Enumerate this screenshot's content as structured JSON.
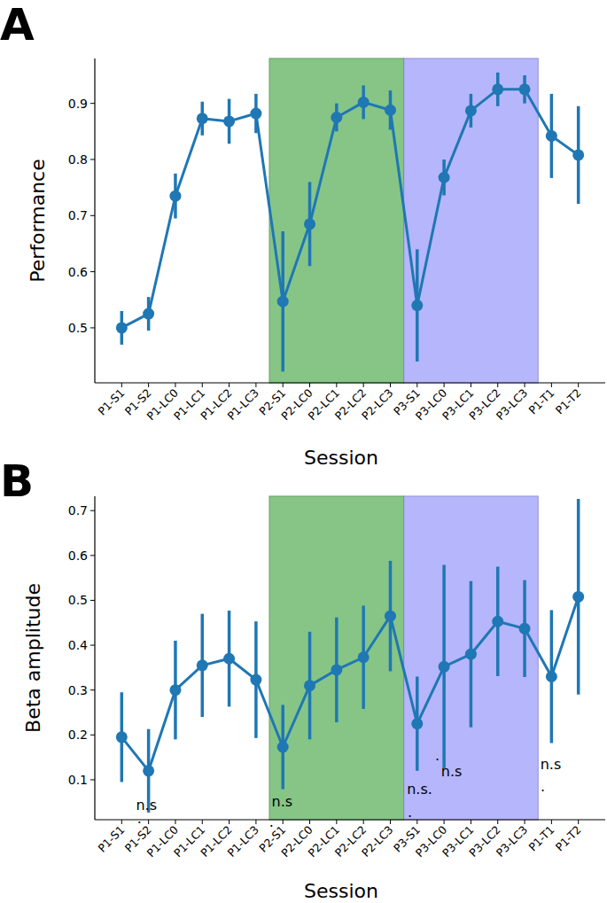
{
  "chart_data": [
    {
      "type": "line",
      "title": "A",
      "x_label": "Session",
      "y_label": "Performance",
      "categories": [
        "P1-S1",
        "P1-S2",
        "P1-LC0",
        "P1-LC1",
        "P1-LC2",
        "P1-LC3",
        "P2-S1",
        "P2-LC0",
        "P2-LC1",
        "P2-LC2",
        "P2-LC3",
        "P3-S1",
        "P3-LC0",
        "P3-LC1",
        "P3-LC2",
        "P3-LC3",
        "P1-T1",
        "P1-T2"
      ],
      "values": [
        0.5,
        0.525,
        0.735,
        0.873,
        0.868,
        0.882,
        0.547,
        0.685,
        0.875,
        0.902,
        0.888,
        0.54,
        0.768,
        0.887,
        0.925,
        0.925,
        0.842,
        0.808
      ],
      "errors": [
        0.03,
        0.03,
        0.04,
        0.03,
        0.04,
        0.035,
        0.125,
        0.075,
        0.025,
        0.03,
        0.035,
        0.1,
        0.032,
        0.03,
        0.03,
        0.025,
        0.075,
        0.087
      ],
      "color": "#1f77b4",
      "marker": "circle",
      "ylim": [
        0.402,
        0.98
      ],
      "yticks": [
        0.5,
        0.6,
        0.7,
        0.8,
        0.9
      ],
      "shaded_spans": [
        {
          "from": "P2-S1",
          "to": "P2-LC3",
          "color": "#80c280"
        },
        {
          "from": "P3-S1",
          "to": "P3-LC3",
          "color": "#b2b2fc"
        }
      ]
    },
    {
      "type": "line",
      "title": "B",
      "x_label": "Session",
      "y_label": "Beta amplitude",
      "categories": [
        "P1-S1",
        "P1-S2",
        "P1-LC0",
        "P1-LC1",
        "P1-LC2",
        "P1-LC3",
        "P2-S1",
        "P2-LC0",
        "P2-LC1",
        "P2-LC2",
        "P2-LC3",
        "P3-S1",
        "P3-LC0",
        "P3-LC1",
        "P3-LC2",
        "P3-LC3",
        "P1-T1",
        "P1-T2"
      ],
      "values": [
        0.195,
        0.12,
        0.3,
        0.355,
        0.37,
        0.323,
        0.173,
        0.31,
        0.345,
        0.373,
        0.465,
        0.225,
        0.352,
        0.38,
        0.453,
        0.437,
        0.33,
        0.508
      ],
      "errors": [
        0.1,
        0.093,
        0.11,
        0.115,
        0.107,
        0.13,
        0.094,
        0.12,
        0.117,
        0.115,
        0.123,
        0.105,
        0.227,
        0.163,
        0.122,
        0.108,
        0.148,
        0.218
      ],
      "color": "#1f77b4",
      "marker": "circle",
      "ylim": [
        0.011,
        0.732
      ],
      "yticks": [
        0.1,
        0.2,
        0.3,
        0.4,
        0.5,
        0.6,
        0.7
      ],
      "shaded_spans": [
        {
          "from": "P2-S1",
          "to": "P2-LC3",
          "color": "#80c280"
        },
        {
          "from": "P3-S1",
          "to": "P3-LC3",
          "color": "#b2b2fc"
        }
      ],
      "annotations": [
        {
          "text": "n.s",
          "x": 0.92,
          "y": 0.045
        },
        {
          "text": ".",
          "x": 0.66,
          "y": 0.015
        },
        {
          "text": "n.s",
          "x": 5.97,
          "y": 0.053
        },
        {
          "text": ".",
          "x": 5.57,
          "y": 0.008
        },
        {
          "text": "n.s.",
          "x": 11.09,
          "y": 0.08
        },
        {
          "text": ".",
          "x": 10.73,
          "y": 0.029
        },
        {
          "text": "n.s",
          "x": 12.28,
          "y": 0.12
        },
        {
          "text": ".",
          "x": 11.75,
          "y": 0.155
        },
        {
          "text": "n.s",
          "x": 15.97,
          "y": 0.136
        },
        {
          "text": ".",
          "x": 15.68,
          "y": 0.086
        }
      ]
    }
  ]
}
